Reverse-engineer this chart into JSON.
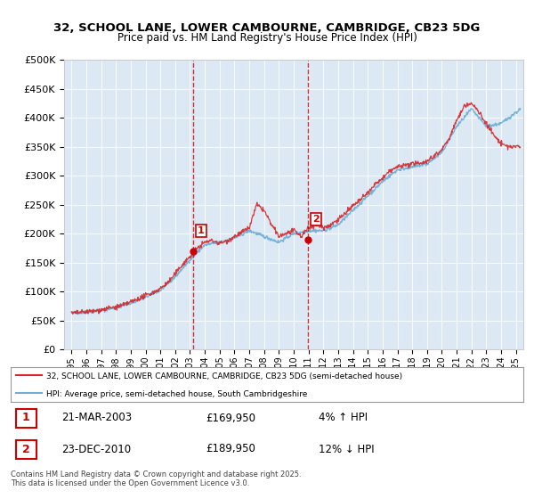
{
  "title": "32, SCHOOL LANE, LOWER CAMBOURNE, CAMBRIDGE, CB23 5DG",
  "subtitle": "Price paid vs. HM Land Registry's House Price Index (HPI)",
  "background_color": "#dce9f5",
  "plot_bg_color": "#dce9f5",
  "legend_entry1": "32, SCHOOL LANE, LOWER CAMBOURNE, CAMBRIDGE, CB23 5DG (semi-detached house)",
  "legend_entry2": "HPI: Average price, semi-detached house, South Cambridgeshire",
  "annotation1_label": "1",
  "annotation1_date": "21-MAR-2003",
  "annotation1_price": "£169,950",
  "annotation1_pct": "4% ↑ HPI",
  "annotation2_label": "2",
  "annotation2_date": "23-DEC-2010",
  "annotation2_price": "£189,950",
  "annotation2_pct": "12% ↓ HPI",
  "footnote": "Contains HM Land Registry data © Crown copyright and database right 2025.\nThis data is licensed under the Open Government Licence v3.0.",
  "sale1_year": 2003.22,
  "sale1_price": 169950,
  "sale2_year": 2010.98,
  "sale2_price": 189950,
  "hpi_color": "#6baed6",
  "price_color": "#d62728",
  "vline_color": "#cc0000",
  "marker_color": "#cc0000",
  "ylim": [
    0,
    500000
  ],
  "yticks": [
    0,
    50000,
    100000,
    150000,
    200000,
    250000,
    300000,
    350000,
    400000,
    450000,
    500000
  ],
  "xlim_start": 1994.5,
  "xlim_end": 2025.5,
  "hpi_data": [
    [
      1995,
      63000
    ],
    [
      1996,
      64000
    ],
    [
      1997,
      67000
    ],
    [
      1998,
      72000
    ],
    [
      1999,
      80000
    ],
    [
      2000,
      90000
    ],
    [
      2001,
      102000
    ],
    [
      2002,
      125000
    ],
    [
      2003,
      155000
    ],
    [
      2004,
      180000
    ],
    [
      2005,
      185000
    ],
    [
      2006,
      192000
    ],
    [
      2007,
      205000
    ],
    [
      2008,
      195000
    ],
    [
      2009,
      185000
    ],
    [
      2010,
      200000
    ],
    [
      2011,
      205000
    ],
    [
      2012,
      205000
    ],
    [
      2013,
      215000
    ],
    [
      2014,
      240000
    ],
    [
      2015,
      265000
    ],
    [
      2016,
      290000
    ],
    [
      2017,
      310000
    ],
    [
      2018,
      315000
    ],
    [
      2019,
      320000
    ],
    [
      2020,
      340000
    ],
    [
      2021,
      385000
    ],
    [
      2022,
      415000
    ],
    [
      2023,
      385000
    ],
    [
      2024,
      390000
    ],
    [
      2025.3,
      415000
    ]
  ],
  "price_paid_data": [
    [
      1995,
      62000
    ],
    [
      1995.5,
      63500
    ],
    [
      1996,
      65000
    ],
    [
      1996.5,
      66000
    ],
    [
      1997,
      68000
    ],
    [
      1997.5,
      71000
    ],
    [
      1998,
      73000
    ],
    [
      1998.5,
      76000
    ],
    [
      1999,
      82000
    ],
    [
      1999.5,
      87000
    ],
    [
      2000,
      93000
    ],
    [
      2000.5,
      98000
    ],
    [
      2001,
      105000
    ],
    [
      2001.5,
      115000
    ],
    [
      2002,
      130000
    ],
    [
      2002.5,
      147000
    ],
    [
      2003,
      160000
    ],
    [
      2003.5,
      175000
    ],
    [
      2004,
      185000
    ],
    [
      2004.5,
      188000
    ],
    [
      2005,
      183000
    ],
    [
      2005.5,
      187000
    ],
    [
      2006,
      195000
    ],
    [
      2006.5,
      202000
    ],
    [
      2007,
      210000
    ],
    [
      2007.5,
      250000
    ],
    [
      2008,
      240000
    ],
    [
      2008.5,
      215000
    ],
    [
      2009,
      195000
    ],
    [
      2009.5,
      200000
    ],
    [
      2010,
      205000
    ],
    [
      2010.5,
      195000
    ],
    [
      2011,
      210000
    ],
    [
      2011.5,
      215000
    ],
    [
      2012,
      210000
    ],
    [
      2012.5,
      215000
    ],
    [
      2013,
      225000
    ],
    [
      2013.5,
      235000
    ],
    [
      2014,
      248000
    ],
    [
      2014.5,
      258000
    ],
    [
      2015,
      270000
    ],
    [
      2015.5,
      285000
    ],
    [
      2016,
      295000
    ],
    [
      2016.5,
      308000
    ],
    [
      2017,
      315000
    ],
    [
      2017.5,
      318000
    ],
    [
      2018,
      320000
    ],
    [
      2018.5,
      322000
    ],
    [
      2019,
      325000
    ],
    [
      2019.5,
      335000
    ],
    [
      2020,
      345000
    ],
    [
      2020.5,
      365000
    ],
    [
      2021,
      395000
    ],
    [
      2021.5,
      420000
    ],
    [
      2022,
      425000
    ],
    [
      2022.5,
      410000
    ],
    [
      2023,
      390000
    ],
    [
      2023.5,
      370000
    ],
    [
      2024,
      355000
    ],
    [
      2024.5,
      350000
    ],
    [
      2025.3,
      350000
    ]
  ]
}
